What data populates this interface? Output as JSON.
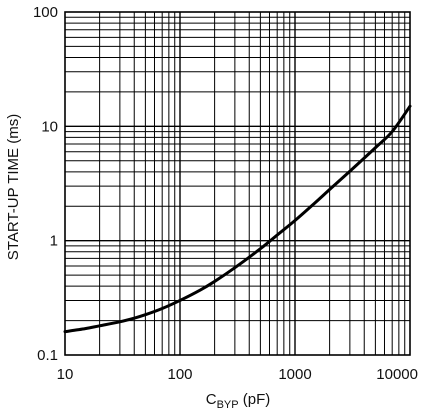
{
  "chart_data": {
    "type": "line",
    "title": "",
    "xlabel": {
      "main": "C",
      "sub": "BYP",
      "rest": " (pF)"
    },
    "ylabel": "START-UP TIME (ms)",
    "xscale": "log",
    "yscale": "log",
    "xlim": [
      10,
      10000
    ],
    "ylim": [
      0.1,
      100
    ],
    "grid": true,
    "x_tick_labels": [
      "10",
      "100",
      "1000",
      "10000"
    ],
    "y_tick_labels": [
      "0.1",
      "1",
      "10",
      "100"
    ],
    "series": [
      {
        "name": "",
        "color": "#000000",
        "x": [
          10,
          15,
          20,
          30,
          40,
          50,
          70,
          100,
          150,
          200,
          300,
          500,
          700,
          1000,
          1500,
          2000,
          3000,
          5000,
          7000,
          10000
        ],
        "y": [
          0.16,
          0.17,
          0.18,
          0.195,
          0.21,
          0.225,
          0.255,
          0.3,
          0.37,
          0.44,
          0.58,
          0.85,
          1.12,
          1.5,
          2.15,
          2.8,
          4.05,
          6.5,
          9.0,
          15.0
        ]
      }
    ]
  }
}
